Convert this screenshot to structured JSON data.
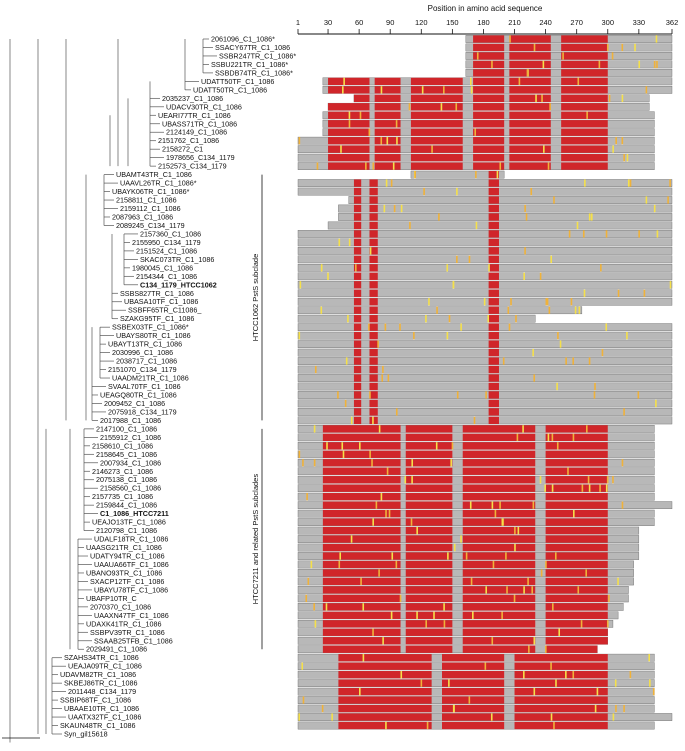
{
  "axis": {
    "title": "Position in amino acid sequence",
    "range": [
      1,
      362
    ],
    "ticks": [
      1,
      30,
      60,
      90,
      120,
      150,
      180,
      210,
      240,
      270,
      300,
      330,
      362
    ]
  },
  "subclades": [
    {
      "label": "HTCC1062 PstS subclade"
    },
    {
      "label": "HTCC7211 and related PstS subclades"
    }
  ],
  "colors": {
    "identical": "#d0262a",
    "similar": "#f0b23a",
    "variable": "#f5e04a",
    "absent": "#b8b8b8",
    "tree": "#555555"
  },
  "scale_label": "",
  "rows": [
    {
      "name": "2061096_C1_1086*",
      "s": 163,
      "e": 362,
      "bold": false
    },
    {
      "name": "SSACY67TR_C1_1086",
      "s": 163,
      "e": 362,
      "bold": false
    },
    {
      "name": "SSBR247TR_C1_1086*",
      "s": 163,
      "e": 362,
      "bold": false
    },
    {
      "name": "SSBU221TR_C1_1086*",
      "s": 163,
      "e": 362,
      "bold": false
    },
    {
      "name": "SSBDB74TR_C1_1086*",
      "s": 163,
      "e": 362,
      "bold": false
    },
    {
      "name": "UDATT50TF_C1_1086",
      "s": 25,
      "e": 362,
      "bold": false
    },
    {
      "name": "UDATT50TR_C1_1086",
      "s": 25,
      "e": 362,
      "bold": false
    },
    {
      "name": "2035237_C1_1086",
      "s": 55,
      "e": 340,
      "bold": false
    },
    {
      "name": "UDACV30TR_C1_1086",
      "s": 30,
      "e": 340,
      "bold": false
    },
    {
      "name": "UEARI77TR_C1_1086",
      "s": 25,
      "e": 345,
      "bold": false
    },
    {
      "name": "UBASS71TR_C1_1086",
      "s": 25,
      "e": 345,
      "bold": false
    },
    {
      "name": "2124149_C1_1086",
      "s": 25,
      "e": 345,
      "bold": false
    },
    {
      "name": "2151762_C1_1086",
      "s": 1,
      "e": 345,
      "bold": false
    },
    {
      "name": "2158272_C1",
      "s": 1,
      "e": 345,
      "bold": false
    },
    {
      "name": "1978656_C134_1179",
      "s": 1,
      "e": 345,
      "bold": false
    },
    {
      "name": "2152573_C134_1179",
      "s": 1,
      "e": 345,
      "bold": false
    },
    {
      "name": "UBAMT43TR_C1_1086",
      "s": 110,
      "e": 200,
      "bold": false
    },
    {
      "name": "UAAVL26TR_C1_1086*",
      "s": 1,
      "e": 362,
      "bold": false
    },
    {
      "name": "UBAYK06TR_C1_1086*",
      "s": 1,
      "e": 362,
      "bold": false
    },
    {
      "name": "2158811_C1_1086",
      "s": 50,
      "e": 362,
      "bold": false
    },
    {
      "name": "2159112_C1_1086",
      "s": 40,
      "e": 362,
      "bold": false
    },
    {
      "name": "2087963_C1_1086",
      "s": 40,
      "e": 362,
      "bold": false
    },
    {
      "name": "2089245_C134_1179",
      "s": 30,
      "e": 362,
      "bold": false
    },
    {
      "name": "2157360_C1_1086",
      "s": 1,
      "e": 362,
      "bold": false
    },
    {
      "name": "2155950_C134_1179",
      "s": 1,
      "e": 362,
      "bold": false
    },
    {
      "name": "2151524_C1_1086",
      "s": 1,
      "e": 362,
      "bold": false
    },
    {
      "name": "SKAC073TR_C1_1086",
      "s": 1,
      "e": 362,
      "bold": false
    },
    {
      "name": "1980045_C1_1086",
      "s": 1,
      "e": 362,
      "bold": false
    },
    {
      "name": "2154344_C1_1086",
      "s": 1,
      "e": 362,
      "bold": false
    },
    {
      "name": "C134_1179_HTCC1062",
      "s": 1,
      "e": 362,
      "bold": true
    },
    {
      "name": "SSBS827TR_C1_1086",
      "s": 1,
      "e": 362,
      "bold": false
    },
    {
      "name": "UBASA10TF_C1_1086",
      "s": 1,
      "e": 362,
      "bold": false
    },
    {
      "name": "SSBFF65TR_C11086_",
      "s": 1,
      "e": 275,
      "bold": false
    },
    {
      "name": "SZAKG95TF_C1_1086",
      "s": 1,
      "e": 230,
      "bold": false
    },
    {
      "name": "SSBEX03TF_C1_1086*",
      "s": 1,
      "e": 362,
      "bold": false
    },
    {
      "name": "UBAYS80TR_C1_1086",
      "s": 1,
      "e": 362,
      "bold": false
    },
    {
      "name": "UBAYT13TR_C1_1086",
      "s": 1,
      "e": 362,
      "bold": false
    },
    {
      "name": "2030996_C1_1086",
      "s": 1,
      "e": 362,
      "bold": false
    },
    {
      "name": "2038717_C1_1086",
      "s": 1,
      "e": 362,
      "bold": false
    },
    {
      "name": "2151070_C134_1179",
      "s": 1,
      "e": 362,
      "bold": false
    },
    {
      "name": "UAADM21TR_C1_1086",
      "s": 1,
      "e": 362,
      "bold": false
    },
    {
      "name": "SVAAL70TF_C1_1086",
      "s": 1,
      "e": 362,
      "bold": false
    },
    {
      "name": "UEAGQ80TR_C1_1086",
      "s": 1,
      "e": 362,
      "bold": false
    },
    {
      "name": "2009452_C1_1086",
      "s": 1,
      "e": 362,
      "bold": false
    },
    {
      "name": "2075918_C134_1179",
      "s": 1,
      "e": 362,
      "bold": false
    },
    {
      "name": "2017988_C1_1086",
      "s": 1,
      "e": 362,
      "bold": false
    },
    {
      "name": "2147100_C1_1086",
      "s": 1,
      "e": 345,
      "bold": false
    },
    {
      "name": "2155912_C1_1086",
      "s": 1,
      "e": 345,
      "bold": false
    },
    {
      "name": "2158610_C1_1086",
      "s": 1,
      "e": 345,
      "bold": false
    },
    {
      "name": "2158645_C1_1086",
      "s": 1,
      "e": 345,
      "bold": false
    },
    {
      "name": "2007934_C1_1086",
      "s": 1,
      "e": 345,
      "bold": false
    },
    {
      "name": "2146273_C1_1086",
      "s": 1,
      "e": 345,
      "bold": false
    },
    {
      "name": "2075138_C1_1086",
      "s": 1,
      "e": 345,
      "bold": false
    },
    {
      "name": "2158560_C1_1086",
      "s": 1,
      "e": 345,
      "bold": false
    },
    {
      "name": "2157735_C1_1086",
      "s": 1,
      "e": 345,
      "bold": false
    },
    {
      "name": "2159844_C1_1086",
      "s": 1,
      "e": 362,
      "bold": false
    },
    {
      "name": "C1_1086_HTCC7211",
      "s": 1,
      "e": 345,
      "bold": true
    },
    {
      "name": "UEAJO13TF_C1_1086",
      "s": 1,
      "e": 345,
      "bold": false
    },
    {
      "name": "2120798_C1_1086",
      "s": 1,
      "e": 330,
      "bold": false
    },
    {
      "name": "UDALF18TR_C1_1086",
      "s": 1,
      "e": 330,
      "bold": false
    },
    {
      "name": "UAASG21TR_C1_1086",
      "s": 1,
      "e": 330,
      "bold": false
    },
    {
      "name": "UDATY94TR_C1_1086",
      "s": 1,
      "e": 330,
      "bold": false
    },
    {
      "name": "UAAUA66TF_C1_1086",
      "s": 1,
      "e": 325,
      "bold": false
    },
    {
      "name": "UBANO93TR_C1_1086",
      "s": 1,
      "e": 325,
      "bold": false
    },
    {
      "name": "SXACP12TF_C1_1086",
      "s": 1,
      "e": 325,
      "bold": false
    },
    {
      "name": "UBAYU78TF_C1_1086",
      "s": 1,
      "e": 320,
      "bold": false
    },
    {
      "name": "UBAFP10TR_C",
      "s": 1,
      "e": 320,
      "bold": false
    },
    {
      "name": "2070370_C1_1086",
      "s": 1,
      "e": 315,
      "bold": false
    },
    {
      "name": "UAAXN47TF_C1_1086",
      "s": 1,
      "e": 310,
      "bold": false
    },
    {
      "name": "UDAXK41TR_C1_1086",
      "s": 1,
      "e": 305,
      "bold": false
    },
    {
      "name": "SSBPV39TR_C1_1086",
      "s": 1,
      "e": 300,
      "bold": false
    },
    {
      "name": "SSAAB25TFB_C1_1086",
      "s": 1,
      "e": 300,
      "bold": false
    },
    {
      "name": "2029491_C1_1086",
      "s": 1,
      "e": 290,
      "bold": false
    },
    {
      "name": "SZAHS34TR_C1_1086",
      "s": 1,
      "e": 345,
      "bold": false
    },
    {
      "name": "UEAJA09TR_C1_1086",
      "s": 1,
      "e": 345,
      "bold": false
    },
    {
      "name": "UDAVM82TR_C1_1086",
      "s": 1,
      "e": 345,
      "bold": false
    },
    {
      "name": "SKBEJ86TR_C1_1086",
      "s": 1,
      "e": 345,
      "bold": false
    },
    {
      "name": "2011448_C134_1179",
      "s": 1,
      "e": 345,
      "bold": false
    },
    {
      "name": "SSBIP68TF_C1_1086",
      "s": 1,
      "e": 345,
      "bold": false
    },
    {
      "name": "UBAAE10TR_C1_1086",
      "s": 1,
      "e": 345,
      "bold": false
    },
    {
      "name": "UAATX32TF_C1_1086",
      "s": 1,
      "e": 362,
      "bold": false
    },
    {
      "name": "SKAUN48TR_C1_1086",
      "s": 1,
      "e": 345,
      "bold": false
    },
    {
      "name": "Syn_gil15618",
      "s": 0,
      "e": 0,
      "bold": false
    }
  ]
}
